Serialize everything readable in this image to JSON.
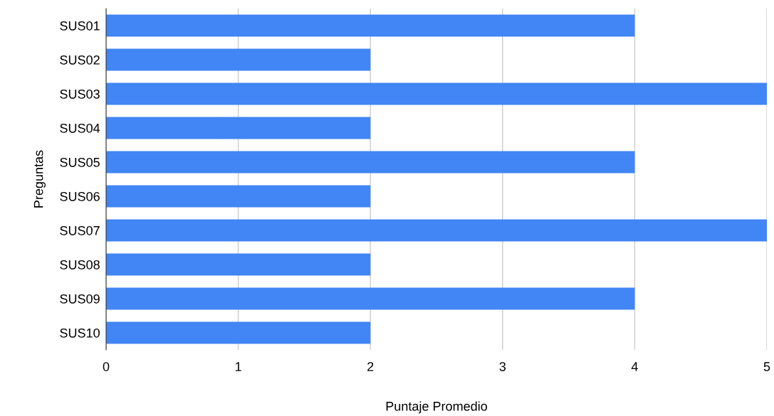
{
  "chart_data": {
    "type": "bar",
    "orientation": "horizontal",
    "xlabel": "Puntaje Promedio",
    "ylabel": "Preguntas",
    "categories": [
      "SUS01",
      "SUS02",
      "SUS03",
      "SUS04",
      "SUS05",
      "SUS06",
      "SUS07",
      "SUS08",
      "SUS09",
      "SUS10"
    ],
    "values": [
      4,
      2,
      5,
      2,
      4,
      2,
      5,
      2,
      4,
      2
    ],
    "color": "#4285f4",
    "xlim": [
      0,
      5
    ],
    "xticks": [
      0,
      1,
      2,
      3,
      4,
      5
    ],
    "grid": "x"
  }
}
